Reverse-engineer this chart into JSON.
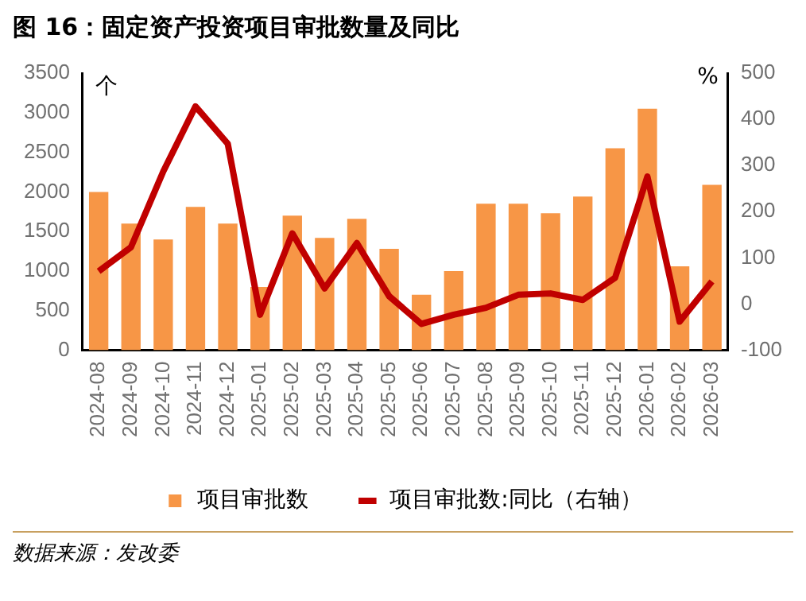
{
  "chart_data": {
    "type": "bar",
    "title": "图 16：固定资产投资项目审批数量及同比",
    "ylabel": "个",
    "y2label": "%",
    "categories": [
      "2024-08",
      "2024-09",
      "2024-10",
      "2024-11",
      "2024-12",
      "2025-01",
      "2025-02",
      "2025-03",
      "2025-04",
      "2025-05",
      "2025-06",
      "2025-07",
      "2025-08",
      "2025-09",
      "2025-10",
      "2025-11",
      "2025-12",
      "2026-01",
      "2026-02",
      "2026-03"
    ],
    "series": [
      {
        "name": "项目审批数",
        "color": "#f79646",
        "values": [
          2000,
          1600,
          1400,
          1810,
          1600,
          800,
          1700,
          1420,
          1660,
          1280,
          700,
          1000,
          1850,
          1850,
          1730,
          1940,
          2550,
          3050,
          1060,
          2090
        ]
      },
      {
        "name": "项目审批数:同比（右轴）",
        "type": "line",
        "axis": "y2",
        "color": "#c00000",
        "values": [
          71,
          123,
          287,
          428,
          347,
          -23,
          153,
          34,
          132,
          17,
          -43,
          -23,
          -8,
          20,
          23,
          9,
          57,
          276,
          -38,
          49
        ]
      }
    ],
    "ylim": [
      0,
      3500
    ],
    "yticks": [
      0,
      500,
      1000,
      1500,
      2000,
      2500,
      3000,
      3500
    ],
    "y2lim": [
      -100,
      500
    ],
    "y2ticks": [
      -100,
      0,
      100,
      200,
      300,
      400,
      500
    ],
    "legend": "bottom",
    "marker": "none",
    "line_style": "solid",
    "grid": false,
    "annotations": [
      "数据来源：发改委"
    ]
  }
}
